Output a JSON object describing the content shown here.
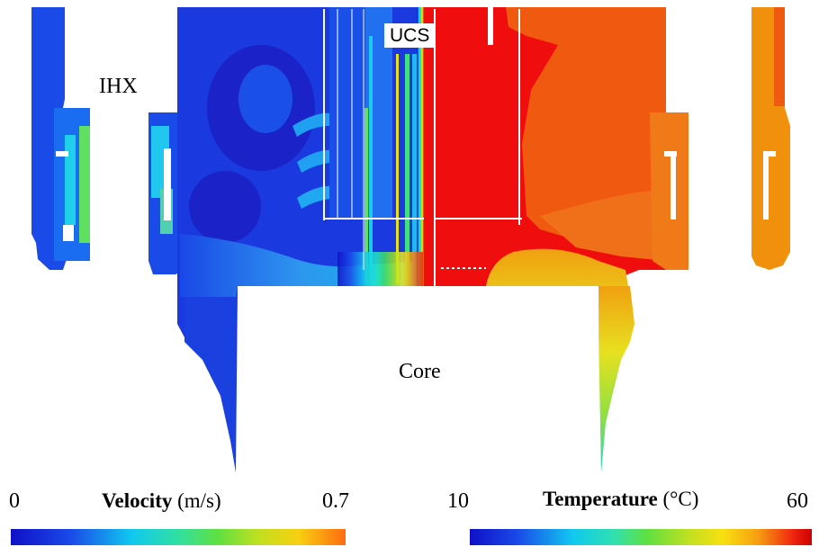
{
  "labels": {
    "ihx": "IHX",
    "ucs": "UCS",
    "core": "Core"
  },
  "velocity_legend": {
    "title": "Velocity",
    "unit": "(m/s)",
    "min": "0",
    "max": "0.7"
  },
  "temperature_legend": {
    "title": "Temperature",
    "unit": "(°C)",
    "min": "10",
    "max": "60"
  },
  "colors": {
    "velocity_low": "#1a22e0",
    "velocity_high": "#ff6a10",
    "temp_low": "#1a22e0",
    "temp_high": "#ee0000",
    "hot_plenum": "#f00d0d",
    "warm_plenum": "#f06010"
  }
}
